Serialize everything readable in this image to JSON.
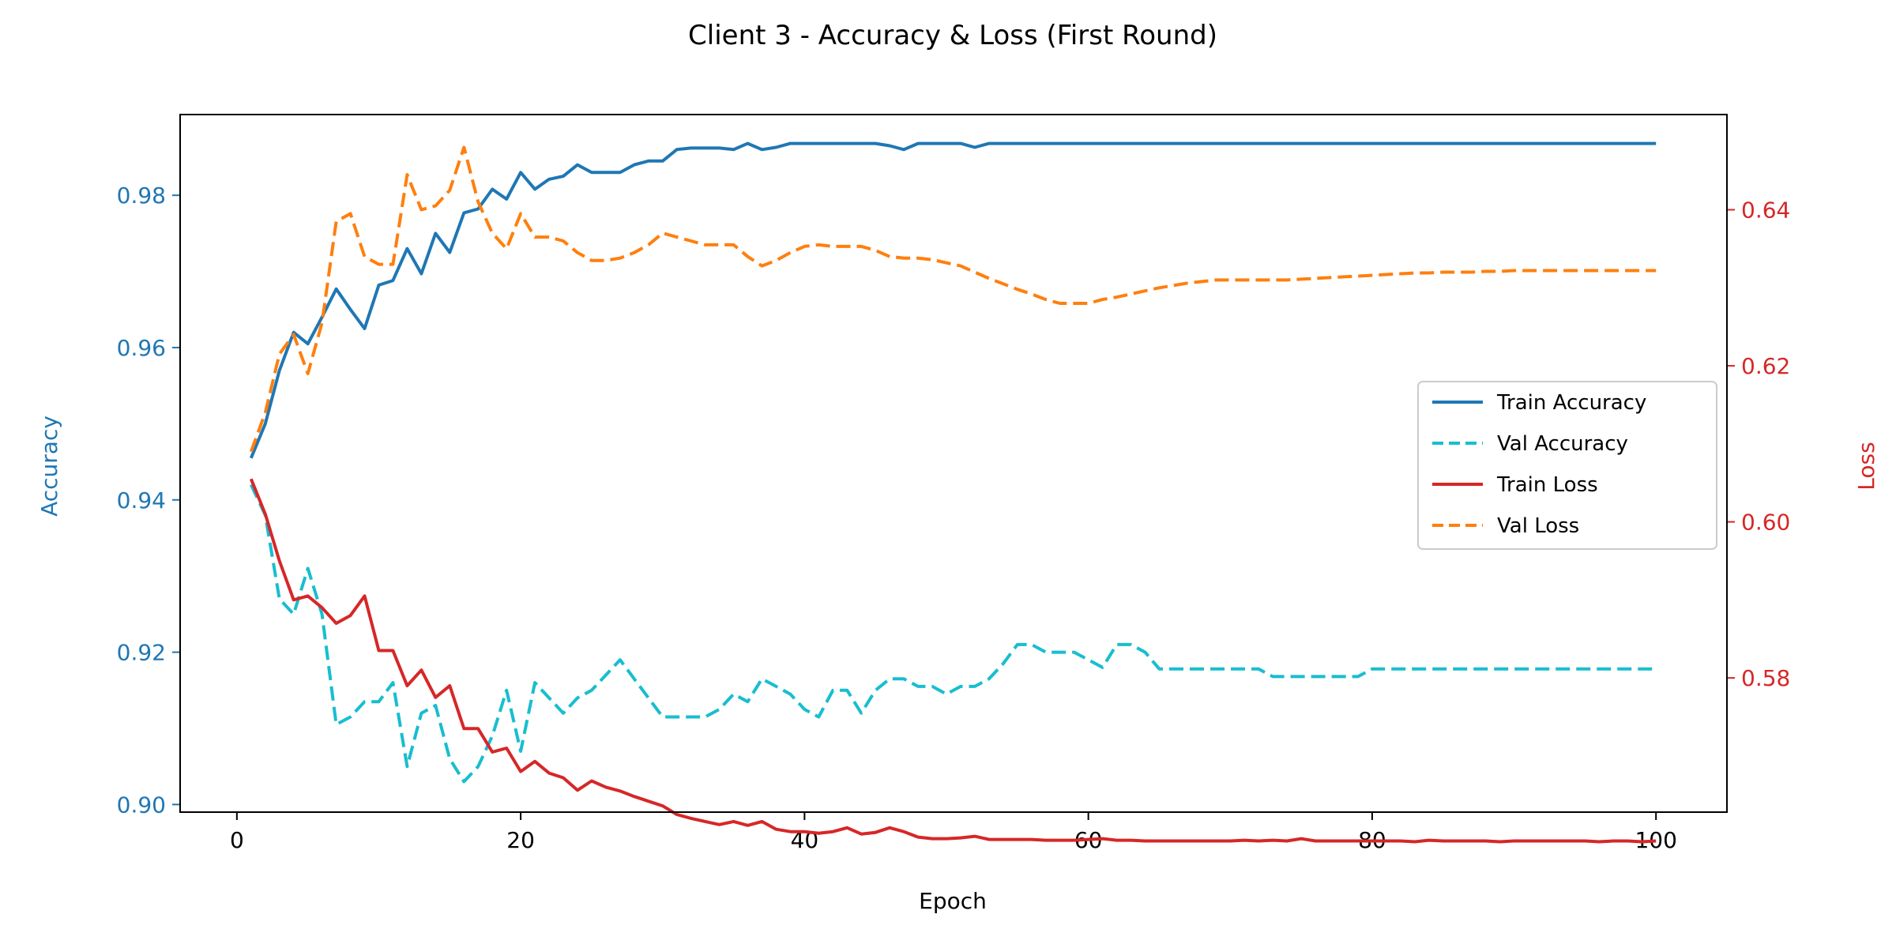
{
  "chart_data": {
    "type": "line",
    "title": "Client 3 - Accuracy & Loss (First Round)",
    "xlabel": "Epoch",
    "ylabel_left": "Accuracy",
    "ylabel_right": "Loss",
    "xlim": [
      -4,
      105
    ],
    "ylim_left": [
      0.899,
      0.9906
    ],
    "ylim_right": [
      0.5628,
      0.6522
    ],
    "xticks": [
      0,
      20,
      40,
      60,
      80,
      100
    ],
    "yticks_left": [
      0.9,
      0.92,
      0.94,
      0.96,
      0.98
    ],
    "yticks_right": [
      0.58,
      0.6,
      0.62,
      0.64
    ],
    "left_axis_color": "#1f77b4",
    "right_axis_color": "#d62728",
    "legend_position": "center-right",
    "series": [
      {
        "name": "Train Accuracy",
        "axis": "left",
        "color": "#1f77b4",
        "dash": "solid",
        "values": [
          0.9455,
          0.95,
          0.957,
          0.962,
          0.9605,
          0.964,
          0.9677,
          0.965,
          0.9625,
          0.9682,
          0.9688,
          0.973,
          0.9697,
          0.975,
          0.9725,
          0.9777,
          0.9782,
          0.9808,
          0.9795,
          0.983,
          0.9808,
          0.9821,
          0.9825,
          0.984,
          0.983,
          0.983,
          0.983,
          0.984,
          0.9845,
          0.9845,
          0.986,
          0.9862,
          0.9862,
          0.9862,
          0.986,
          0.9868,
          0.986,
          0.9863,
          0.9868,
          0.9868,
          0.9868,
          0.9868,
          0.9868,
          0.9868,
          0.9868,
          0.9865,
          0.986,
          0.9868,
          0.9868,
          0.9868,
          0.9868,
          0.9863,
          0.9868,
          0.9868,
          0.9868,
          0.9868,
          0.9868,
          0.9868,
          0.9868,
          0.9868,
          0.9868,
          0.9868,
          0.9868,
          0.9868,
          0.9868,
          0.9868,
          0.9868,
          0.9868,
          0.9868,
          0.9868,
          0.9868,
          0.9868,
          0.9868,
          0.9868,
          0.9868,
          0.9868,
          0.9868,
          0.9868,
          0.9868,
          0.9868,
          0.9868,
          0.9868,
          0.9868,
          0.9868,
          0.9868,
          0.9868,
          0.9868,
          0.9868,
          0.9868,
          0.9868,
          0.9868,
          0.9868,
          0.9868,
          0.9868,
          0.9868,
          0.9868,
          0.9868,
          0.9868,
          0.9868,
          0.9868
        ]
      },
      {
        "name": "Val Accuracy",
        "axis": "left",
        "color": "#17becf",
        "dash": "dashed",
        "values": [
          0.942,
          0.938,
          0.927,
          0.925,
          0.931,
          0.925,
          0.9105,
          0.9115,
          0.9135,
          0.9135,
          0.916,
          0.905,
          0.912,
          0.913,
          0.906,
          0.903,
          0.905,
          0.909,
          0.915,
          0.907,
          0.916,
          0.914,
          0.912,
          0.914,
          0.915,
          0.917,
          0.919,
          0.9165,
          0.914,
          0.9115,
          0.9115,
          0.9115,
          0.9115,
          0.9125,
          0.9145,
          0.9135,
          0.9165,
          0.9155,
          0.9145,
          0.9125,
          0.9115,
          0.915,
          0.915,
          0.912,
          0.915,
          0.9165,
          0.9165,
          0.9155,
          0.9155,
          0.9145,
          0.9155,
          0.9155,
          0.9165,
          0.9185,
          0.921,
          0.921,
          0.92,
          0.92,
          0.92,
          0.919,
          0.918,
          0.921,
          0.921,
          0.92,
          0.9178,
          0.9178,
          0.9178,
          0.9178,
          0.9178,
          0.9178,
          0.9178,
          0.9178,
          0.9168,
          0.9168,
          0.9168,
          0.9168,
          0.9168,
          0.9168,
          0.9168,
          0.9178,
          0.9178,
          0.9178,
          0.9178,
          0.9178,
          0.9178,
          0.9178,
          0.9178,
          0.9178,
          0.9178,
          0.9178,
          0.9178,
          0.9178,
          0.9178,
          0.9178,
          0.9178,
          0.9178,
          0.9178,
          0.9178,
          0.9178,
          0.9178
        ]
      },
      {
        "name": "Train Loss",
        "axis": "right",
        "color": "#d62728",
        "dash": "solid",
        "values": [
          0.6055,
          0.601,
          0.595,
          0.59,
          0.5905,
          0.589,
          0.587,
          0.588,
          0.5905,
          0.5835,
          0.5835,
          0.579,
          0.581,
          0.5775,
          0.579,
          0.5735,
          0.5735,
          0.5705,
          0.571,
          0.568,
          0.5693,
          0.5678,
          0.5672,
          0.5656,
          0.5668,
          0.566,
          0.5655,
          0.5648,
          0.5642,
          0.5636,
          0.5625,
          0.562,
          0.5616,
          0.5612,
          0.5616,
          0.5611,
          0.5616,
          0.5606,
          0.5603,
          0.5603,
          0.5601,
          0.5603,
          0.5608,
          0.56,
          0.5602,
          0.5608,
          0.5603,
          0.5596,
          0.5594,
          0.5594,
          0.5595,
          0.5597,
          0.5593,
          0.5593,
          0.5593,
          0.5593,
          0.5592,
          0.5592,
          0.5592,
          0.5593,
          0.5594,
          0.5592,
          0.5592,
          0.5591,
          0.5591,
          0.5591,
          0.5591,
          0.5591,
          0.5591,
          0.5591,
          0.5592,
          0.5591,
          0.5592,
          0.5591,
          0.5594,
          0.5591,
          0.5591,
          0.5591,
          0.5591,
          0.5591,
          0.5591,
          0.5591,
          0.559,
          0.5592,
          0.5591,
          0.5591,
          0.5591,
          0.5591,
          0.559,
          0.5591,
          0.5591,
          0.5591,
          0.5591,
          0.5591,
          0.5591,
          0.559,
          0.5591,
          0.5591,
          0.559,
          0.5591
        ]
      },
      {
        "name": "Val Loss",
        "axis": "right",
        "color": "#ff7f0e",
        "dash": "dashed",
        "values": [
          0.609,
          0.614,
          0.6215,
          0.624,
          0.619,
          0.6255,
          0.6385,
          0.6395,
          0.634,
          0.633,
          0.633,
          0.6445,
          0.64,
          0.6405,
          0.6425,
          0.648,
          0.641,
          0.637,
          0.635,
          0.6395,
          0.6365,
          0.6365,
          0.636,
          0.6345,
          0.6335,
          0.6335,
          0.6338,
          0.6345,
          0.6355,
          0.637,
          0.6365,
          0.636,
          0.6355,
          0.6355,
          0.6355,
          0.634,
          0.6328,
          0.6335,
          0.6345,
          0.6353,
          0.6355,
          0.6353,
          0.6353,
          0.6353,
          0.6348,
          0.634,
          0.6338,
          0.6338,
          0.6336,
          0.6332,
          0.6328,
          0.632,
          0.6312,
          0.6305,
          0.6298,
          0.6292,
          0.6285,
          0.628,
          0.628,
          0.628,
          0.6285,
          0.6288,
          0.6292,
          0.6296,
          0.63,
          0.6303,
          0.6306,
          0.6308,
          0.631,
          0.631,
          0.631,
          0.631,
          0.631,
          0.631,
          0.6311,
          0.6312,
          0.6313,
          0.6314,
          0.6315,
          0.6316,
          0.6317,
          0.6318,
          0.6319,
          0.6319,
          0.632,
          0.632,
          0.632,
          0.6321,
          0.6321,
          0.6322,
          0.6322,
          0.6322,
          0.6322,
          0.6322,
          0.6322,
          0.6322,
          0.6322,
          0.6322,
          0.6322,
          0.6322
        ]
      }
    ]
  }
}
